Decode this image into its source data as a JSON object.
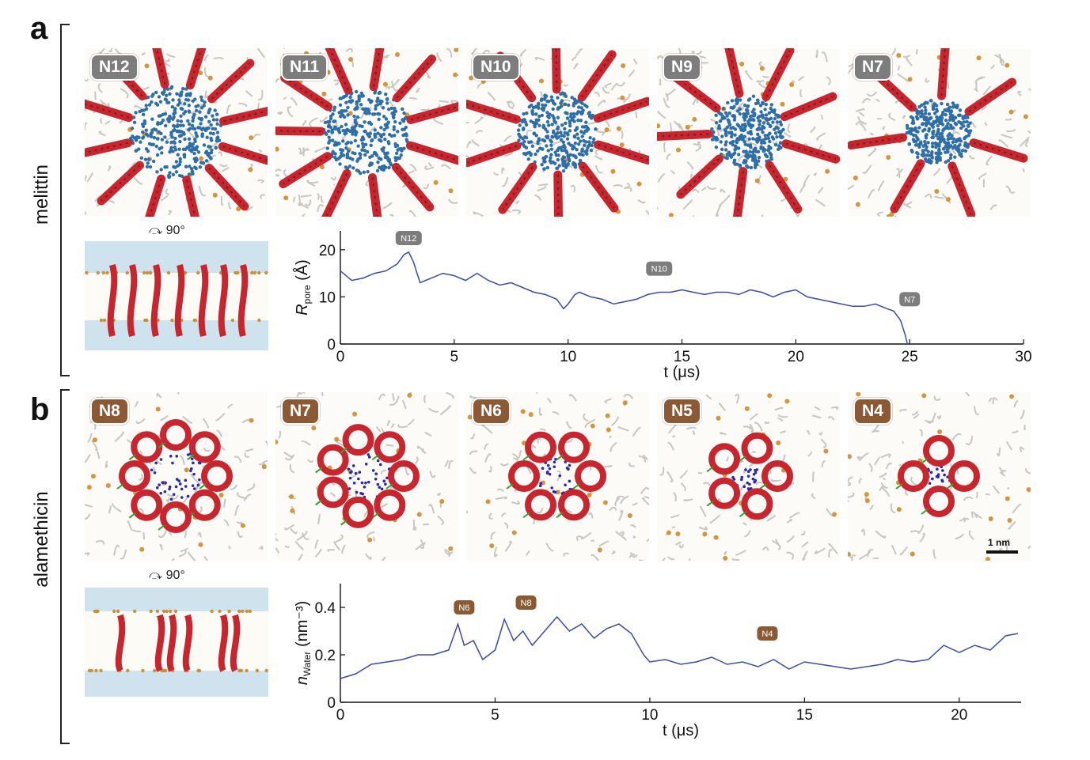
{
  "panel_a": {
    "letter": "a",
    "side_label": "melittin",
    "rotation_label": "90°",
    "snapshots": [
      "N12",
      "N11",
      "N10",
      "N9",
      "N7"
    ]
  },
  "panel_b": {
    "letter": "b",
    "side_label": "alamethicin",
    "rotation_label": "90°",
    "snapshots": [
      "N8",
      "N7",
      "N6",
      "N5",
      "N4"
    ],
    "scale_bar": "1 nm"
  },
  "colors": {
    "line": "#3b4ba8",
    "badge_grey": "#7d7d7d",
    "badge_brown": "#8b5a35",
    "helix": "#c8262e",
    "water": "#2e6fa8"
  },
  "chart_data": [
    {
      "type": "line",
      "xlabel": "t (μs)",
      "ylabel": "R_pore (Å)",
      "ylabel_main": "R",
      "ylabel_sub": "pore",
      "ylabel_unit": " (Å)",
      "xlim": [
        0,
        30
      ],
      "ylim": [
        0,
        24
      ],
      "xticks": [
        0,
        5,
        10,
        15,
        20,
        25,
        30
      ],
      "yticks": [
        0,
        10,
        20
      ],
      "annotations": [
        {
          "text": "N12",
          "x": 3.0,
          "y": 22.5
        },
        {
          "text": "N10",
          "x": 14.0,
          "y": 16.0
        },
        {
          "text": "N7",
          "x": 25.0,
          "y": 9.5
        }
      ],
      "series": [
        {
          "x": [
            0,
            0.5,
            1,
            1.5,
            2,
            2.5,
            2.8,
            3,
            3.2,
            3.5,
            4,
            4.5,
            5,
            5.5,
            6,
            6.5,
            7,
            7.5,
            8,
            8.5,
            9,
            9.5,
            9.8,
            10,
            10.3,
            10.5,
            11,
            11.5,
            12,
            12.5,
            13,
            13.5,
            14,
            14.5,
            15,
            15.5,
            16,
            16.5,
            17,
            17.5,
            18,
            18.5,
            19,
            19.5,
            20,
            20.5,
            21,
            21.5,
            22,
            22.5,
            23,
            23.5,
            24,
            24.3,
            24.6,
            24.8,
            24.9
          ],
          "y": [
            15.5,
            13.5,
            14.0,
            15.0,
            15.5,
            17.0,
            19.0,
            19.5,
            17.5,
            13.0,
            14.0,
            15.0,
            14.5,
            13.5,
            15.0,
            13.5,
            12.5,
            13.0,
            12.0,
            11.0,
            10.5,
            9.5,
            7.5,
            8.5,
            10.5,
            11.0,
            10.0,
            9.5,
            8.5,
            9.0,
            9.5,
            10.5,
            11.0,
            11.0,
            11.5,
            11.0,
            10.5,
            11.0,
            11.0,
            10.5,
            11.5,
            11.0,
            10.0,
            11.0,
            11.5,
            10.0,
            9.5,
            9.0,
            8.5,
            8.0,
            8.0,
            8.5,
            7.5,
            7.0,
            5.0,
            2.0,
            0.0
          ]
        }
      ]
    },
    {
      "type": "line",
      "xlabel": "t (μs)",
      "ylabel": "n_Water (nm⁻³)",
      "ylabel_main": "n",
      "ylabel_sub": "Water",
      "ylabel_unit": " (nm⁻³)",
      "xlim": [
        0,
        22
      ],
      "ylim": [
        0,
        0.5
      ],
      "xticks": [
        0,
        5,
        10,
        15,
        20
      ],
      "yticks": [
        0,
        0.2,
        0.4
      ],
      "ytick_labels": [
        "0",
        "0.2",
        "0.4"
      ],
      "annotations": [
        {
          "text": "N6",
          "x": 4.0,
          "y": 0.4
        },
        {
          "text": "N8",
          "x": 6.0,
          "y": 0.42
        },
        {
          "text": "N4",
          "x": 13.8,
          "y": 0.29
        }
      ],
      "series": [
        {
          "x": [
            0,
            0.5,
            1,
            1.5,
            2,
            2.5,
            3,
            3.5,
            3.8,
            4,
            4.3,
            4.6,
            5,
            5.3,
            5.6,
            5.9,
            6.2,
            6.6,
            7,
            7.4,
            7.8,
            8.2,
            8.6,
            9,
            9.4,
            9.8,
            10,
            10.5,
            11,
            11.5,
            12,
            12.5,
            13,
            13.5,
            14,
            14.5,
            15,
            15.5,
            16,
            16.5,
            17,
            17.5,
            18,
            18.5,
            19,
            19.5,
            20,
            20.5,
            21,
            21.5,
            21.9
          ],
          "y": [
            0.1,
            0.12,
            0.16,
            0.17,
            0.18,
            0.2,
            0.2,
            0.22,
            0.33,
            0.24,
            0.26,
            0.18,
            0.22,
            0.35,
            0.26,
            0.3,
            0.24,
            0.3,
            0.36,
            0.3,
            0.33,
            0.27,
            0.31,
            0.33,
            0.29,
            0.2,
            0.17,
            0.18,
            0.16,
            0.17,
            0.19,
            0.16,
            0.17,
            0.15,
            0.18,
            0.14,
            0.17,
            0.16,
            0.15,
            0.14,
            0.15,
            0.16,
            0.18,
            0.17,
            0.18,
            0.24,
            0.21,
            0.24,
            0.22,
            0.28,
            0.29
          ]
        }
      ]
    }
  ]
}
